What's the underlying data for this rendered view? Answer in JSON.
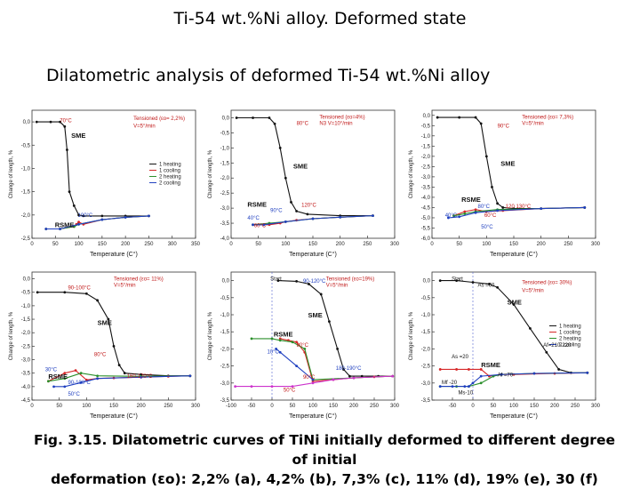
{
  "slide": {
    "title": "Ti-54 wt.%Ni  alloy. Deformed  state",
    "subtitle": "Dilatometric   analysis  of  deformed Ti-54 wt.%Ni alloy",
    "caption_line1": "Fig. 3.15. Dilatometric curves of TiNi initially deformed to different degree of initial",
    "caption_line2": "deformation (εo):   2,2% (a), 4,2% (b), 7,3% (c), 11% (d),  19% (e), 30 (f)"
  },
  "chart_data": [
    {
      "type": "line",
      "panel": "a",
      "xlabel": "Temperature (C°)",
      "ylabel": "Change of length, %",
      "xlim": [
        0,
        350
      ],
      "ylim": [
        -2.5,
        0.25
      ],
      "xticks": [
        0,
        50,
        100,
        150,
        200,
        250,
        300,
        350
      ],
      "yticks": [
        0.0,
        -0.5,
        -1.0,
        -1.5,
        -2.0,
        -2.5
      ],
      "legend": [
        "1 heating",
        "1 cooling",
        "2 heating",
        "2 cooling"
      ],
      "annotations": [
        "Tensioned (εo= 2,2%)",
        "V=5°/min",
        "70°C",
        "SME",
        "RSME",
        "100°C"
      ],
      "series": [
        {
          "name": "1 heating",
          "color": "#111111",
          "x": [
            10,
            40,
            60,
            70,
            75,
            80,
            90,
            100,
            110,
            150,
            200,
            250
          ],
          "y": [
            0,
            0,
            0,
            -0.1,
            -0.6,
            -1.5,
            -1.8,
            -2.0,
            -2.02,
            -2.02,
            -2.02,
            -2.02
          ]
        },
        {
          "name": "1 cooling",
          "color": "#d62728",
          "x": [
            250,
            200,
            150,
            110,
            100,
            95,
            90,
            60,
            30
          ],
          "y": [
            -2.02,
            -2.05,
            -2.1,
            -2.2,
            -2.15,
            -2.2,
            -2.25,
            -2.3,
            -2.3
          ]
        },
        {
          "name": "2 heating",
          "color": "#2a8f2a",
          "x": [
            30,
            60,
            90,
            100,
            150,
            200,
            250
          ],
          "y": [
            -2.3,
            -2.3,
            -2.25,
            -2.2,
            -2.1,
            -2.05,
            -2.02
          ]
        },
        {
          "name": "2 cooling",
          "color": "#2040c0",
          "x": [
            250,
            200,
            150,
            100,
            60,
            30
          ],
          "y": [
            -2.02,
            -2.05,
            -2.1,
            -2.2,
            -2.3,
            -2.3
          ]
        }
      ]
    },
    {
      "type": "line",
      "panel": "b",
      "xlabel": "Temperature (C°)",
      "ylabel": "Change of length, %",
      "xlim": [
        0,
        300
      ],
      "ylim": [
        -4.0,
        0.25
      ],
      "xticks": [
        0,
        50,
        100,
        150,
        200,
        250,
        300
      ],
      "yticks": [
        0.0,
        -0.5,
        -1.0,
        -1.5,
        -2.0,
        -2.5,
        -3.0,
        -3.5,
        -4.0
      ],
      "annotations": [
        "Tensioned (εo=4%)",
        "N3  V=10°/min",
        "80°C",
        "SME",
        "RSME",
        "90°C",
        "120°C",
        "40°C",
        "60°C"
      ],
      "series": [
        {
          "name": "1 heating",
          "color": "#111111",
          "x": [
            10,
            40,
            70,
            80,
            90,
            100,
            110,
            120,
            140,
            200,
            260
          ],
          "y": [
            0,
            0,
            0,
            -0.2,
            -1.0,
            -2.0,
            -2.8,
            -3.1,
            -3.2,
            -3.25,
            -3.25
          ]
        },
        {
          "name": "1 cooling",
          "color": "#d62728",
          "x": [
            260,
            200,
            150,
            120,
            100,
            90,
            70,
            40
          ],
          "y": [
            -3.25,
            -3.3,
            -3.35,
            -3.4,
            -3.45,
            -3.5,
            -3.55,
            -3.55
          ]
        },
        {
          "name": "2 heating",
          "color": "#2a8f2a",
          "x": [
            40,
            70,
            100,
            150,
            200,
            260
          ],
          "y": [
            -3.55,
            -3.5,
            -3.45,
            -3.35,
            -3.3,
            -3.25
          ]
        },
        {
          "name": "2 cooling",
          "color": "#2040c0",
          "x": [
            260,
            200,
            150,
            100,
            60,
            40
          ],
          "y": [
            -3.25,
            -3.3,
            -3.35,
            -3.45,
            -3.55,
            -3.55
          ]
        }
      ]
    },
    {
      "type": "line",
      "panel": "c",
      "xlabel": "Temperature (C°)",
      "ylabel": "Change of length, %",
      "xlim": [
        0,
        300
      ],
      "ylim": [
        -6.0,
        0.25
      ],
      "xticks": [
        0,
        50,
        100,
        150,
        200,
        250,
        300
      ],
      "yticks": [
        0.0,
        -0.5,
        -1.0,
        -1.5,
        -2.0,
        -2.5,
        -3.0,
        -3.5,
        -4.0,
        -4.5,
        -5.0,
        -5.5,
        -6.0
      ],
      "annotations": [
        "Tensioned (εo= 7,3%)",
        "V=5°/min",
        "90°C",
        "SME",
        "RSME",
        "80°C",
        "120 130°C",
        "40°C",
        "60°C",
        "50°C"
      ],
      "series": [
        {
          "name": "1 heating",
          "color": "#111111",
          "x": [
            10,
            50,
            80,
            90,
            100,
            110,
            120,
            130,
            150,
            200,
            280
          ],
          "y": [
            -0.1,
            -0.1,
            -0.1,
            -0.4,
            -2.0,
            -3.5,
            -4.3,
            -4.5,
            -4.55,
            -4.55,
            -4.5
          ]
        },
        {
          "name": "1 cooling",
          "color": "#d62728",
          "x": [
            280,
            200,
            130,
            100,
            80,
            60,
            40
          ],
          "y": [
            -4.5,
            -4.55,
            -4.65,
            -4.7,
            -4.6,
            -4.7,
            -4.9
          ]
        },
        {
          "name": "2 heating",
          "color": "#2a8f2a",
          "x": [
            40,
            60,
            80,
            120,
            200,
            280
          ],
          "y": [
            -4.9,
            -4.8,
            -4.7,
            -4.6,
            -4.55,
            -4.5
          ]
        },
        {
          "name": "2 cooling",
          "color": "#2040c0",
          "x": [
            280,
            200,
            120,
            80,
            50,
            30
          ],
          "y": [
            -4.5,
            -4.55,
            -4.65,
            -4.75,
            -4.95,
            -5.0
          ]
        }
      ]
    },
    {
      "type": "line",
      "panel": "d",
      "xlabel": "Temperature (C°)",
      "ylabel": "Change of length, %",
      "xlim": [
        0,
        300
      ],
      "ylim": [
        -4.5,
        0.25
      ],
      "xticks": [
        0,
        50,
        100,
        150,
        200,
        250,
        300
      ],
      "yticks": [
        0.0,
        -0.5,
        -1.0,
        -1.5,
        -2.0,
        -2.5,
        -3.0,
        -3.5,
        -4.0,
        -4.5
      ],
      "annotations": [
        "Tensioned (εo= 11%)",
        "V=5°/min",
        "90-100°C",
        "SME",
        "80°C",
        "30°C",
        "RSME",
        "90-100°C",
        "160-170°C",
        "50°C"
      ],
      "series": [
        {
          "name": "1 heating",
          "color": "#111111",
          "x": [
            10,
            60,
            100,
            120,
            140,
            150,
            160,
            170,
            200,
            250,
            290
          ],
          "y": [
            -0.5,
            -0.5,
            -0.55,
            -0.8,
            -1.5,
            -2.5,
            -3.2,
            -3.5,
            -3.55,
            -3.6,
            -3.6
          ]
        },
        {
          "name": "1 cooling",
          "color": "#d62728",
          "x": [
            290,
            250,
            200,
            150,
            120,
            100,
            80,
            60,
            30
          ],
          "y": [
            -3.6,
            -3.62,
            -3.65,
            -3.68,
            -3.7,
            -3.75,
            -3.4,
            -3.5,
            -3.8
          ]
        },
        {
          "name": "2 heating",
          "color": "#2a8f2a",
          "x": [
            30,
            60,
            90,
            120,
            200,
            290
          ],
          "y": [
            -3.8,
            -3.7,
            -3.5,
            -3.6,
            -3.62,
            -3.6
          ]
        },
        {
          "name": "2 cooling",
          "color": "#2040c0",
          "x": [
            290,
            200,
            120,
            90,
            60,
            40
          ],
          "y": [
            -3.6,
            -3.65,
            -3.7,
            -3.85,
            -4.0,
            -4.0
          ]
        }
      ]
    },
    {
      "type": "line",
      "panel": "e",
      "xlabel": "Temperature (C°)",
      "ylabel": "Change of length, %",
      "xlim": [
        -100,
        300
      ],
      "ylim": [
        -3.5,
        0.25
      ],
      "xticks": [
        -100,
        -50,
        0,
        50,
        100,
        150,
        200,
        250,
        300
      ],
      "yticks": [
        0.0,
        -0.5,
        -1.0,
        -1.5,
        -2.0,
        -2.5,
        -3.0,
        -3.5
      ],
      "annotations": [
        "Tensioned (εo=19%)",
        "V=5°/min",
        "Start",
        "90-120°C",
        "SME",
        "RSME",
        "80°C",
        "10°C",
        "90°C",
        "180-190°C",
        "50°C"
      ],
      "series": [
        {
          "name": "1 heating",
          "color": "#111111",
          "x": [
            15,
            60,
            90,
            120,
            140,
            160,
            175,
            190,
            220,
            260,
            295
          ],
          "y": [
            0,
            -0.02,
            -0.1,
            -0.4,
            -1.2,
            -2.0,
            -2.6,
            -2.8,
            -2.8,
            -2.8,
            -2.8
          ]
        },
        {
          "name": "1 cooling",
          "color": "#d62728",
          "x": [
            295,
            250,
            200,
            150,
            100,
            80,
            60,
            40,
            20
          ],
          "y": [
            -2.8,
            -2.82,
            -2.85,
            -2.9,
            -2.95,
            -2.1,
            -1.8,
            -1.75,
            -1.7
          ]
        },
        {
          "name": "2 heating",
          "color": "#2a8f2a",
          "x": [
            -50,
            0,
            20,
            50,
            80,
            100,
            200,
            295
          ],
          "y": [
            -1.7,
            -1.7,
            -1.75,
            -1.8,
            -2.0,
            -2.9,
            -2.85,
            -2.8
          ]
        },
        {
          "name": "3 cooling",
          "color": "#cc33cc",
          "x": [
            295,
            200,
            150,
            100,
            50,
            0,
            -50,
            -90
          ],
          "y": [
            -2.8,
            -2.85,
            -2.9,
            -3.0,
            -3.1,
            -3.1,
            -3.1,
            -3.1
          ]
        },
        {
          "name": "2 cooling",
          "color": "#2040c0",
          "x": [
            100,
            60,
            20,
            10
          ],
          "y": [
            -2.9,
            -2.5,
            -2.1,
            -2.0
          ]
        }
      ]
    },
    {
      "type": "line",
      "panel": "f",
      "xlabel": "Temperature (C°)",
      "ylabel": "Change of length, %",
      "xlim": [
        -100,
        300
      ],
      "ylim": [
        -3.5,
        0.25
      ],
      "xticks": [
        -50,
        0,
        50,
        100,
        150,
        200,
        250,
        300
      ],
      "yticks": [
        0.0,
        -0.5,
        -1.0,
        -1.5,
        -2.0,
        -2.5,
        -3.0,
        -3.5
      ],
      "legend": [
        "1 heating",
        "1 cooling",
        "2 heating",
        "2 cooling"
      ],
      "annotations": [
        "Tensioned (εo= 30%)",
        "V=5°/min",
        "Start",
        "As =60",
        "SME",
        "Af=210-220",
        "RSME",
        "As =20",
        "Af =70",
        "Mf -20",
        "Ms-10"
      ],
      "series": [
        {
          "name": "1 heating",
          "color": "#111111",
          "x": [
            -80,
            -40,
            0,
            40,
            60,
            100,
            140,
            180,
            210,
            240,
            280
          ],
          "y": [
            0,
            0,
            -0.05,
            -0.1,
            -0.2,
            -0.7,
            -1.4,
            -2.1,
            -2.6,
            -2.7,
            -2.7
          ]
        },
        {
          "name": "1 cooling",
          "color": "#d62728",
          "x": [
            280,
            200,
            100,
            70,
            40,
            20,
            -10,
            -40,
            -80
          ],
          "y": [
            -2.7,
            -2.72,
            -2.75,
            -2.75,
            -2.8,
            -2.6,
            -2.6,
            -2.6,
            -2.6
          ]
        },
        {
          "name": "2 heating",
          "color": "#2a8f2a",
          "x": [
            -80,
            -40,
            -10,
            20,
            50,
            70,
            150,
            280
          ],
          "y": [
            -3.1,
            -3.1,
            -3.1,
            -3.0,
            -2.8,
            -2.75,
            -2.72,
            -2.7
          ]
        },
        {
          "name": "2 cooling",
          "color": "#2040c0",
          "x": [
            280,
            150,
            70,
            20,
            0,
            -10,
            -20,
            -50,
            -80
          ],
          "y": [
            -2.7,
            -2.72,
            -2.75,
            -2.8,
            -3.0,
            -3.1,
            -3.1,
            -3.1,
            -3.1
          ]
        }
      ]
    }
  ]
}
